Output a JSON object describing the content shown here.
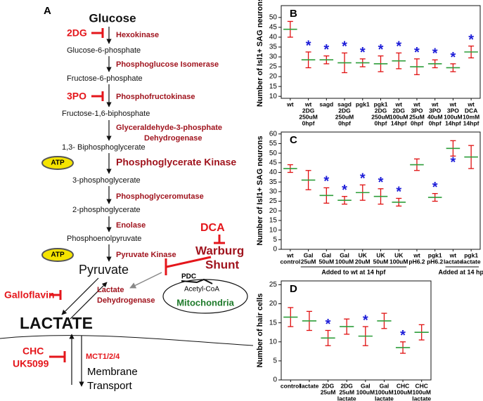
{
  "diagram": {
    "label": "A",
    "metabolites": [
      "Glucose",
      "Glucose-6-phosphate",
      "Fructose-6-phosphate",
      "Fructose-1,6-biphosphate",
      "1,3- Biphosphoglycerate",
      "3-phosphoglycerate",
      "2-phosphoglycerate",
      "Phosphoenolpyruvate",
      "Pyruvate",
      "LACTATE"
    ],
    "enzymes": [
      "Hexokinase",
      "Phosphoglucose Isomerase",
      "Phosphofructokinase",
      "Glyceraldehyde-3-phosphate",
      "Dehydrogenase",
      "Phosphoglycerate Kinase",
      "Phosphoglyceromutase",
      "Enolase",
      "Pyruvate Kinase",
      "Lactate",
      "Dehydrogenase",
      "MCT1/2/4"
    ],
    "inhibitors": [
      "2DG",
      "3PO",
      "DCA",
      "Galloflavin",
      "CHC",
      "UK5099"
    ],
    "atp": [
      "ATP",
      "ATP"
    ],
    "shunt": [
      "Warburg",
      "Shunt"
    ],
    "mitochondrion": [
      "PDC",
      "Acetyl-CoA",
      "Mitochondria"
    ],
    "transport": [
      "Membrane",
      "Transport"
    ]
  },
  "chart_data": [
    {
      "type": "dot",
      "panel": "B",
      "ylabel": "Number of Isl1+ SAG neurons",
      "categories": [
        [
          "wt"
        ],
        [
          "wt",
          "2DG",
          "250uM",
          "0hpf"
        ],
        [
          "sagd"
        ],
        [
          "sagd",
          "2DG",
          "250uM",
          "0hpf"
        ],
        [
          "pgk1"
        ],
        [
          "pgk1",
          "2DG",
          "250uM",
          "0hpf"
        ],
        [
          "wt",
          "2DG",
          "100uM",
          "14hpf"
        ],
        [
          "wt",
          "3PO",
          "25uM",
          "0hpf"
        ],
        [
          "wt",
          "3PO",
          "40uM",
          "0hpf"
        ],
        [
          "wt",
          "3PO",
          "100uM",
          "14hpf"
        ],
        [
          "wt",
          "DCA",
          "10mM",
          "14hpf"
        ]
      ],
      "values": [
        44,
        28.5,
        28.5,
        27,
        27,
        26.5,
        28,
        25,
        26.5,
        24.5,
        32.5
      ],
      "errors": [
        4,
        4,
        2,
        5,
        2,
        4,
        4,
        4,
        2,
        2,
        3
      ],
      "significance": [
        null,
        "*",
        "*",
        "*",
        "*",
        "*",
        "*",
        "*",
        "*",
        "*",
        "*"
      ],
      "group_labels": [],
      "ylim": [
        9,
        56
      ],
      "yticks": [
        10,
        15,
        20,
        25,
        30,
        35,
        40,
        45,
        50
      ],
      "mean_color": "#2e9e3a",
      "error_color": "#e01010",
      "star_color": "#1c1cd8"
    },
    {
      "type": "dot",
      "panel": "C",
      "ylabel": "Number of Isl1+ SAG neurons",
      "categories": [
        [
          "wt",
          "control"
        ],
        [
          "Gal",
          "25uM"
        ],
        [
          "Gal",
          "50uM"
        ],
        [
          "Gal",
          "100uM"
        ],
        [
          "UK",
          "20uM"
        ],
        [
          "UK",
          "50uM"
        ],
        [
          "UK",
          "100uM"
        ],
        [
          "wt",
          "pH6.2"
        ],
        [
          "pgk1",
          "pH6.2"
        ],
        [
          "wt",
          "lactate"
        ],
        [
          "pgk1",
          "lactate"
        ]
      ],
      "values": [
        42,
        36,
        28,
        25.5,
        29.5,
        27.5,
        24.5,
        44,
        27,
        52.5,
        48
      ],
      "errors": [
        2,
        5,
        4,
        2,
        4,
        4,
        2,
        3,
        2,
        4,
        6
      ],
      "significance": [
        null,
        null,
        "*",
        "*",
        "*",
        "*",
        "*",
        null,
        "*",
        "*",
        null
      ],
      "group_labels": [
        "Added to wt at 14 hpf",
        "Added at 14 hpf"
      ],
      "ylim": [
        0,
        61
      ],
      "yticks": [
        0,
        5,
        10,
        15,
        20,
        25,
        30,
        35,
        40,
        45,
        50,
        55,
        60
      ],
      "mean_color": "#2e9e3a",
      "error_color": "#e01010",
      "star_color": "#1c1cd8"
    },
    {
      "type": "dot",
      "panel": "D",
      "ylabel": "Number of hair cells",
      "categories": [
        [
          "control"
        ],
        [
          "lactate"
        ],
        [
          "2DG",
          "25uM"
        ],
        [
          "2DG",
          "25uM",
          "lactate"
        ],
        [
          "Gal",
          "100uM"
        ],
        [
          "Gal",
          "100uM",
          "lactate"
        ],
        [
          "CHC",
          "100uM"
        ],
        [
          "CHC",
          "100uM",
          "lactate"
        ]
      ],
      "values": [
        16.5,
        15.5,
        11,
        14,
        11.5,
        15.5,
        8.5,
        12.5
      ],
      "errors": [
        2.5,
        2.5,
        2,
        2,
        2.5,
        2,
        1.5,
        2
      ],
      "significance": [
        null,
        null,
        "*",
        null,
        "*",
        null,
        "*",
        null
      ],
      "group_labels": [
        "Added at 14 hpf"
      ],
      "ylim": [
        0,
        26
      ],
      "yticks": [
        0,
        5,
        10,
        15,
        20,
        25
      ],
      "mean_color": "#2e9e3a",
      "error_color": "#e01010",
      "star_color": "#1c1cd8"
    }
  ]
}
